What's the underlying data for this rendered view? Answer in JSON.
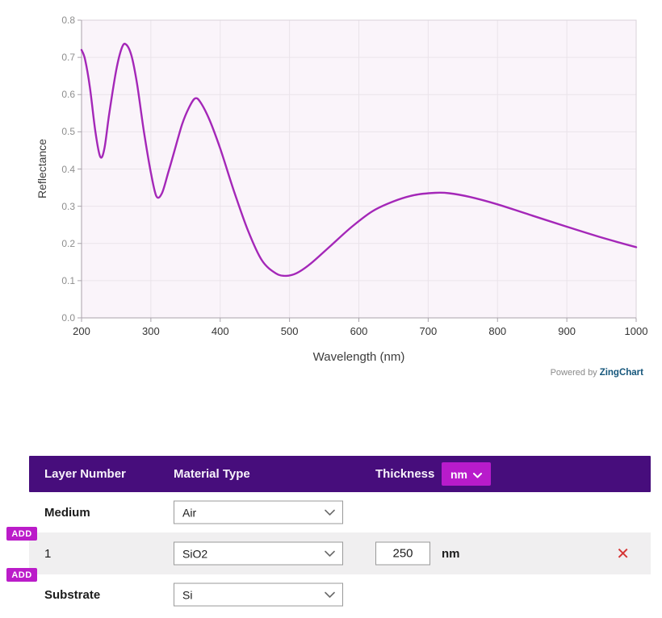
{
  "chart_data": {
    "type": "line",
    "title": "",
    "xlabel": "Wavelength (nm)",
    "ylabel": "Reflectance",
    "xlim": [
      200,
      1000
    ],
    "ylim": [
      0,
      0.8
    ],
    "xticks": [
      200,
      300,
      400,
      500,
      600,
      700,
      800,
      900,
      1000
    ],
    "yticks": [
      0.0,
      0.1,
      0.2,
      0.3,
      0.4,
      0.5,
      0.6,
      0.7,
      0.8
    ],
    "grid": true,
    "legend": "none",
    "line_color": "#a427b8",
    "plot_bg": "#faf4fa",
    "grid_color": "#eae3ea",
    "axis_color": "#a9a2ab",
    "series": [
      {
        "name": "Reflectance",
        "x": [
          200,
          205,
          212,
          220,
          227,
          233,
          240,
          250,
          258,
          264,
          272,
          280,
          290,
          300,
          308,
          316,
          325,
          335,
          345,
          355,
          364,
          372,
          385,
          400,
          420,
          440,
          460,
          480,
          495,
          510,
          530,
          560,
          590,
          620,
          650,
          680,
          710,
          730,
          760,
          800,
          850,
          900,
          950,
          1000
        ],
        "y": [
          0.72,
          0.695,
          0.62,
          0.5,
          0.433,
          0.455,
          0.55,
          0.665,
          0.725,
          0.735,
          0.705,
          0.63,
          0.5,
          0.39,
          0.327,
          0.335,
          0.39,
          0.455,
          0.52,
          0.565,
          0.59,
          0.578,
          0.53,
          0.455,
          0.34,
          0.235,
          0.155,
          0.12,
          0.113,
          0.12,
          0.145,
          0.195,
          0.245,
          0.287,
          0.313,
          0.33,
          0.336,
          0.335,
          0.325,
          0.305,
          0.275,
          0.245,
          0.216,
          0.19
        ]
      }
    ]
  },
  "chart": {
    "attribution": {
      "powered_by": "Powered by",
      "brand": "ZingChart",
      "brand_color": "#15567b"
    }
  },
  "table": {
    "header": {
      "layer_number": "Layer Number",
      "material_type": "Material Type",
      "thickness": "Thickness",
      "unit_selected": "nm"
    },
    "rows": [
      {
        "label": "Medium",
        "material": "Air"
      },
      {
        "label": "1",
        "material": "SiO2",
        "thickness": "250",
        "unit": "nm"
      },
      {
        "label": "Substrate",
        "material": "Si"
      }
    ],
    "add_button_label": "ADD",
    "delete_icon": "✕"
  },
  "colors": {
    "header_bg": "#470d7c",
    "accent_magenta": "#b81bcb",
    "add_magenta": "#bb1cc9",
    "delete_red": "#d53434",
    "row_alt_bg": "#f0eff0"
  }
}
